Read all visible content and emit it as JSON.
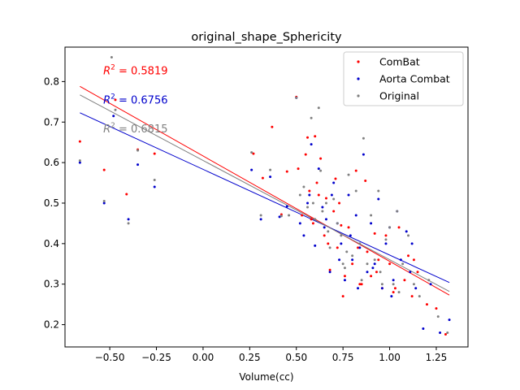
{
  "chart_data": {
    "type": "scatter",
    "title": "original_shape_Sphericity",
    "xlabel": "Volume(cc)",
    "ylabel": "",
    "xlim": [
      -0.74,
      1.42
    ],
    "ylim": [
      0.145,
      0.885
    ],
    "xticks": [
      -0.5,
      -0.25,
      0.0,
      0.25,
      0.5,
      0.75,
      1.0,
      1.25
    ],
    "xtick_labels": [
      "−0.50",
      "−0.25",
      "0.00",
      "0.25",
      "0.50",
      "0.75",
      "1.00",
      "1.25"
    ],
    "yticks": [
      0.2,
      0.3,
      0.4,
      0.5,
      0.6,
      0.7,
      0.8
    ],
    "ytick_labels": [
      "0.2",
      "0.3",
      "0.4",
      "0.5",
      "0.6",
      "0.7",
      "0.8"
    ],
    "grid": false,
    "legend_position": "top-right",
    "series": [
      {
        "name": "ComBat",
        "color": "#ff0000",
        "fit": {
          "r2_label": "R² = 0.5819",
          "r2_value": "0.5819",
          "x0": -0.66,
          "y0": 0.788,
          "x1": 1.32,
          "y1": 0.273
        },
        "x": [
          -0.66,
          -0.53,
          -0.47,
          -0.41,
          -0.35,
          -0.26,
          0.27,
          0.32,
          0.37,
          0.42,
          0.45,
          0.5,
          0.51,
          0.53,
          0.55,
          0.56,
          0.57,
          0.59,
          0.6,
          0.62,
          0.63,
          0.65,
          0.66,
          0.68,
          0.7,
          0.71,
          0.72,
          0.74,
          0.76,
          0.78,
          0.8,
          0.82,
          0.83,
          0.85,
          0.87,
          0.88,
          0.9,
          0.92,
          0.94,
          0.96,
          0.98,
          1.0,
          1.02,
          1.05,
          1.08,
          1.1,
          1.12,
          1.15,
          1.2,
          1.25,
          1.3,
          0.58,
          0.67,
          0.75,
          0.84,
          0.93,
          1.03,
          1.13,
          0.61,
          0.73
        ],
        "y": [
          0.652,
          0.582,
          0.755,
          0.522,
          0.632,
          0.622,
          0.622,
          0.562,
          0.688,
          0.472,
          0.578,
          0.762,
          0.585,
          0.47,
          0.62,
          0.662,
          0.53,
          0.45,
          0.665,
          0.52,
          0.61,
          0.42,
          0.512,
          0.335,
          0.48,
          0.56,
          0.39,
          0.445,
          0.32,
          0.44,
          0.35,
          0.58,
          0.39,
          0.3,
          0.555,
          0.38,
          0.32,
          0.425,
          0.36,
          0.29,
          0.42,
          0.35,
          0.28,
          0.44,
          0.31,
          0.37,
          0.27,
          0.33,
          0.25,
          0.24,
          0.176,
          0.46,
          0.4,
          0.27,
          0.3,
          0.33,
          0.29,
          0.36,
          0.55,
          0.5
        ]
      },
      {
        "name": "Aorta Combat",
        "color": "#0000cc",
        "fit": {
          "r2_label": "R² = 0.6756",
          "r2_value": "0.6756",
          "x0": -0.66,
          "y0": 0.723,
          "x1": 1.32,
          "y1": 0.304
        },
        "x": [
          -0.66,
          -0.53,
          -0.48,
          -0.4,
          -0.35,
          -0.26,
          0.26,
          0.31,
          0.36,
          0.41,
          0.45,
          0.5,
          0.52,
          0.54,
          0.56,
          0.58,
          0.6,
          0.62,
          0.64,
          0.66,
          0.68,
          0.7,
          0.72,
          0.74,
          0.76,
          0.78,
          0.8,
          0.82,
          0.84,
          0.86,
          0.88,
          0.9,
          0.92,
          0.94,
          0.96,
          0.98,
          1.0,
          1.02,
          1.04,
          1.06,
          1.09,
          1.11,
          1.14,
          1.18,
          1.22,
          1.27,
          1.32,
          0.57,
          0.65,
          0.73,
          0.83,
          0.91,
          1.01,
          1.12,
          0.69,
          0.79
        ],
        "y": [
          0.6,
          0.5,
          0.715,
          0.46,
          0.595,
          0.54,
          0.582,
          0.46,
          0.565,
          0.466,
          0.492,
          0.76,
          0.45,
          0.42,
          0.5,
          0.645,
          0.395,
          0.585,
          0.49,
          0.46,
          0.33,
          0.55,
          0.45,
          0.4,
          0.31,
          0.52,
          0.36,
          0.47,
          0.39,
          0.62,
          0.33,
          0.45,
          0.35,
          0.51,
          0.29,
          0.4,
          0.44,
          0.31,
          0.48,
          0.36,
          0.43,
          0.33,
          0.29,
          0.19,
          0.3,
          0.18,
          0.212,
          0.52,
          0.44,
          0.36,
          0.29,
          0.34,
          0.27,
          0.4,
          0.52,
          0.42
        ]
      },
      {
        "name": "Original",
        "color": "#808080",
        "fit": {
          "r2_label": "R² = 0.6815",
          "r2_value": "0.6815",
          "x0": -0.66,
          "y0": 0.767,
          "x1": 1.32,
          "y1": 0.282
        },
        "x": [
          -0.66,
          -0.53,
          -0.49,
          -0.47,
          -0.4,
          -0.35,
          -0.26,
          0.26,
          0.31,
          0.36,
          0.42,
          0.46,
          0.5,
          0.52,
          0.54,
          0.56,
          0.58,
          0.6,
          0.62,
          0.64,
          0.66,
          0.68,
          0.7,
          0.72,
          0.74,
          0.76,
          0.78,
          0.8,
          0.82,
          0.84,
          0.86,
          0.88,
          0.9,
          0.92,
          0.94,
          0.96,
          0.98,
          1.0,
          1.02,
          1.04,
          1.07,
          1.1,
          1.13,
          1.16,
          1.21,
          1.26,
          1.31,
          0.59,
          0.67,
          0.75,
          0.85,
          0.95,
          1.05,
          0.63,
          0.77
        ],
        "y": [
          0.605,
          0.505,
          0.86,
          0.73,
          0.45,
          0.63,
          0.557,
          0.625,
          0.47,
          0.582,
          0.468,
          0.47,
          0.76,
          0.52,
          0.54,
          0.49,
          0.71,
          0.46,
          0.735,
          0.48,
          0.5,
          0.39,
          0.51,
          0.45,
          0.42,
          0.34,
          0.57,
          0.37,
          0.53,
          0.4,
          0.66,
          0.35,
          0.47,
          0.36,
          0.53,
          0.3,
          0.41,
          0.44,
          0.3,
          0.48,
          0.35,
          0.42,
          0.3,
          0.27,
          0.31,
          0.22,
          0.18,
          0.5,
          0.43,
          0.35,
          0.31,
          0.33,
          0.28,
          0.58,
          0.38
        ]
      }
    ]
  }
}
